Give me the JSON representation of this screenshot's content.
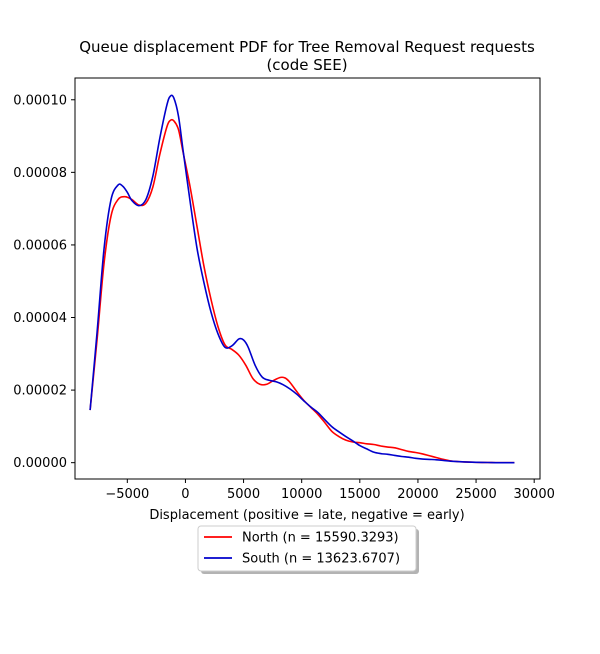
{
  "chart_data": {
    "type": "line",
    "title": "Queue displacement PDF for Tree Removal Request  requests",
    "subtitle": "(code SEE)",
    "xlabel": "Displacement (positive = late, negative = early)",
    "ylabel": "",
    "xlim": [
      -9500,
      30500
    ],
    "ylim": [
      -4.5e-06,
      0.000106
    ],
    "x_ticks": [
      -5000,
      0,
      5000,
      10000,
      15000,
      20000,
      25000,
      30000
    ],
    "x_tick_labels": [
      "−5000",
      "0",
      "5000",
      "10000",
      "15000",
      "20000",
      "25000",
      "30000"
    ],
    "y_ticks": [
      0,
      2e-05,
      4e-05,
      6e-05,
      8e-05,
      0.0001
    ],
    "y_tick_labels": [
      "0.00000",
      "0.00002",
      "0.00004",
      "0.00006",
      "0.00008",
      "0.00010"
    ],
    "grid": false,
    "legend_position": "below",
    "series": [
      {
        "name": "North (n = 15590.3293)",
        "color": "#ff0000",
        "x": [
          -8200,
          -7600,
          -7000,
          -6400,
          -5800,
          -5200,
          -4600,
          -4000,
          -3400,
          -2800,
          -2200,
          -1600,
          -1300,
          -1000,
          -600,
          -200,
          400,
          1000,
          1600,
          2200,
          2800,
          3400,
          4000,
          4600,
          5200,
          5800,
          6400,
          7000,
          7600,
          8200,
          8600,
          9000,
          9600,
          10200,
          10800,
          11400,
          12000,
          12600,
          13200,
          13800,
          14400,
          15000,
          15600,
          16200,
          16800,
          17400,
          18000,
          18600,
          19200,
          19800,
          20400,
          21000,
          21600,
          22200,
          22800,
          23400,
          24000,
          25000,
          26000,
          27000,
          28300
        ],
        "y": [
          1.45e-05,
          3.4e-05,
          5.5e-05,
          6.8e-05,
          7.25e-05,
          7.33e-05,
          7.25e-05,
          7.1e-05,
          7.15e-05,
          7.6e-05,
          8.5e-05,
          9.25e-05,
          9.43e-05,
          9.42e-05,
          9.18e-05,
          8.55e-05,
          7.6e-05,
          6.5e-05,
          5.4e-05,
          4.5e-05,
          3.75e-05,
          3.25e-05,
          3.12e-05,
          2.96e-05,
          2.68e-05,
          2.32e-05,
          2.16e-05,
          2.16e-05,
          2.27e-05,
          2.35e-05,
          2.33e-05,
          2.21e-05,
          1.95e-05,
          1.71e-05,
          1.52e-05,
          1.33e-05,
          1.1e-05,
          8.6e-06,
          7.2e-06,
          6.2e-06,
          5.7e-06,
          5.5e-06,
          5.2e-06,
          5e-06,
          4.6e-06,
          4.3e-06,
          4.1e-06,
          3.6e-06,
          3.1e-06,
          2.8e-06,
          2.4e-06,
          1.9e-06,
          1.4e-06,
          9e-07,
          5e-07,
          3e-07,
          2e-07,
          1e-07,
          5e-08,
          0.0,
          0.0
        ]
      },
      {
        "name": "South (n = 13623.6707)",
        "color": "#0000cc",
        "x": [
          -8200,
          -7600,
          -7000,
          -6400,
          -5800,
          -5400,
          -5000,
          -4600,
          -4000,
          -3400,
          -2800,
          -2200,
          -1600,
          -1300,
          -1000,
          -600,
          -200,
          400,
          1000,
          1600,
          2200,
          2800,
          3400,
          4000,
          4600,
          5000,
          5400,
          6000,
          6600,
          7200,
          7800,
          8400,
          9000,
          9600,
          10200,
          10800,
          11400,
          12000,
          12600,
          13200,
          13800,
          14400,
          15000,
          15600,
          16200,
          16800,
          17400,
          18000,
          18600,
          19200,
          19800,
          20400,
          21000,
          21600,
          22200,
          22800,
          23400,
          24000,
          25000,
          26000,
          27000,
          28300
        ],
        "y": [
          1.45e-05,
          3.6e-05,
          5.9e-05,
          7.25e-05,
          7.65e-05,
          7.62e-05,
          7.45e-05,
          7.22e-05,
          7.08e-05,
          7.25e-05,
          7.9e-05,
          8.95e-05,
          9.85e-05,
          0.000101,
          0.0001005,
          9.55e-05,
          8.6e-05,
          7.2e-05,
          5.9e-05,
          4.95e-05,
          4.15e-05,
          3.55e-05,
          3.18e-05,
          3.22e-05,
          3.41e-05,
          3.38e-05,
          3.18e-05,
          2.68e-05,
          2.36e-05,
          2.27e-05,
          2.23e-05,
          2.15e-05,
          2.03e-05,
          1.88e-05,
          1.7e-05,
          1.53e-05,
          1.38e-05,
          1.18e-05,
          9.9e-06,
          8.5e-06,
          7.2e-06,
          6e-06,
          4.7e-06,
          3.8e-06,
          2.9e-06,
          2.5e-06,
          2.3e-06,
          2e-06,
          1.7e-06,
          1.5e-06,
          1.2e-06,
          1e-06,
          9e-07,
          8e-07,
          6e-07,
          4e-07,
          3e-07,
          2e-07,
          1e-07,
          5e-08,
          0.0,
          0.0
        ]
      }
    ]
  }
}
